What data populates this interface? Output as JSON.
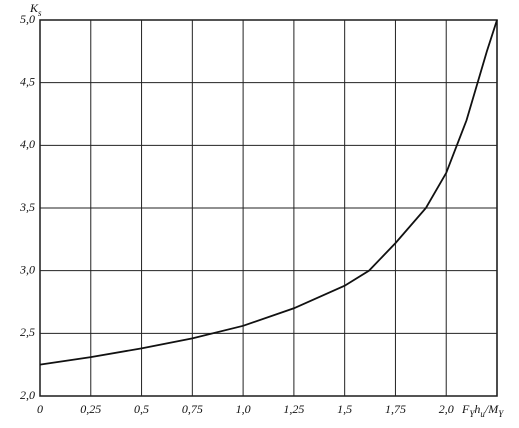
{
  "chart_data": {
    "type": "line",
    "x_label": [
      {
        "text": "F"
      },
      {
        "text": "Y",
        "sub": true
      },
      {
        "text": "h"
      },
      {
        "text": "u",
        "sub": true
      },
      {
        "text": "/M"
      },
      {
        "text": "Y",
        "sub": true
      }
    ],
    "y_label": [
      {
        "text": "K"
      },
      {
        "text": "s",
        "sub": true
      }
    ],
    "x": [
      0,
      0.25,
      0.5,
      0.75,
      1.0,
      1.25,
      1.5,
      1.62,
      1.75,
      1.9,
      2.0,
      2.1,
      2.2,
      2.25
    ],
    "series": [
      {
        "color": "#111111",
        "values": [
          2.25,
          2.31,
          2.38,
          2.46,
          2.56,
          2.7,
          2.88,
          3.0,
          3.22,
          3.5,
          3.78,
          4.2,
          4.75,
          5.0
        ]
      }
    ],
    "xlim": [
      0,
      2.25
    ],
    "ylim": [
      2.0,
      5.0
    ],
    "xticks": [
      0,
      {
        "value": 0.25,
        "label": "0,25"
      },
      {
        "value": 0.5,
        "label": "0,5"
      },
      {
        "value": 0.75,
        "label": "0,75"
      },
      {
        "value": 1.0,
        "label": "1,0"
      },
      {
        "value": 1.25,
        "label": "1,25"
      },
      {
        "value": 1.5,
        "label": "1,5"
      },
      {
        "value": 1.75,
        "label": "1,75"
      },
      {
        "value": 2.0,
        "label": "2,0"
      }
    ],
    "yticks": [
      {
        "value": 2.0,
        "label": "2,0"
      },
      {
        "value": 2.5,
        "label": "2,5"
      },
      {
        "value": 3.0,
        "label": "3,0"
      },
      {
        "value": 3.5,
        "label": "3,5"
      },
      {
        "value": 4.0,
        "label": "4,0"
      },
      {
        "value": 4.5,
        "label": "4,5"
      },
      {
        "value": 5.0,
        "label": "5,0"
      }
    ],
    "grid": true
  }
}
